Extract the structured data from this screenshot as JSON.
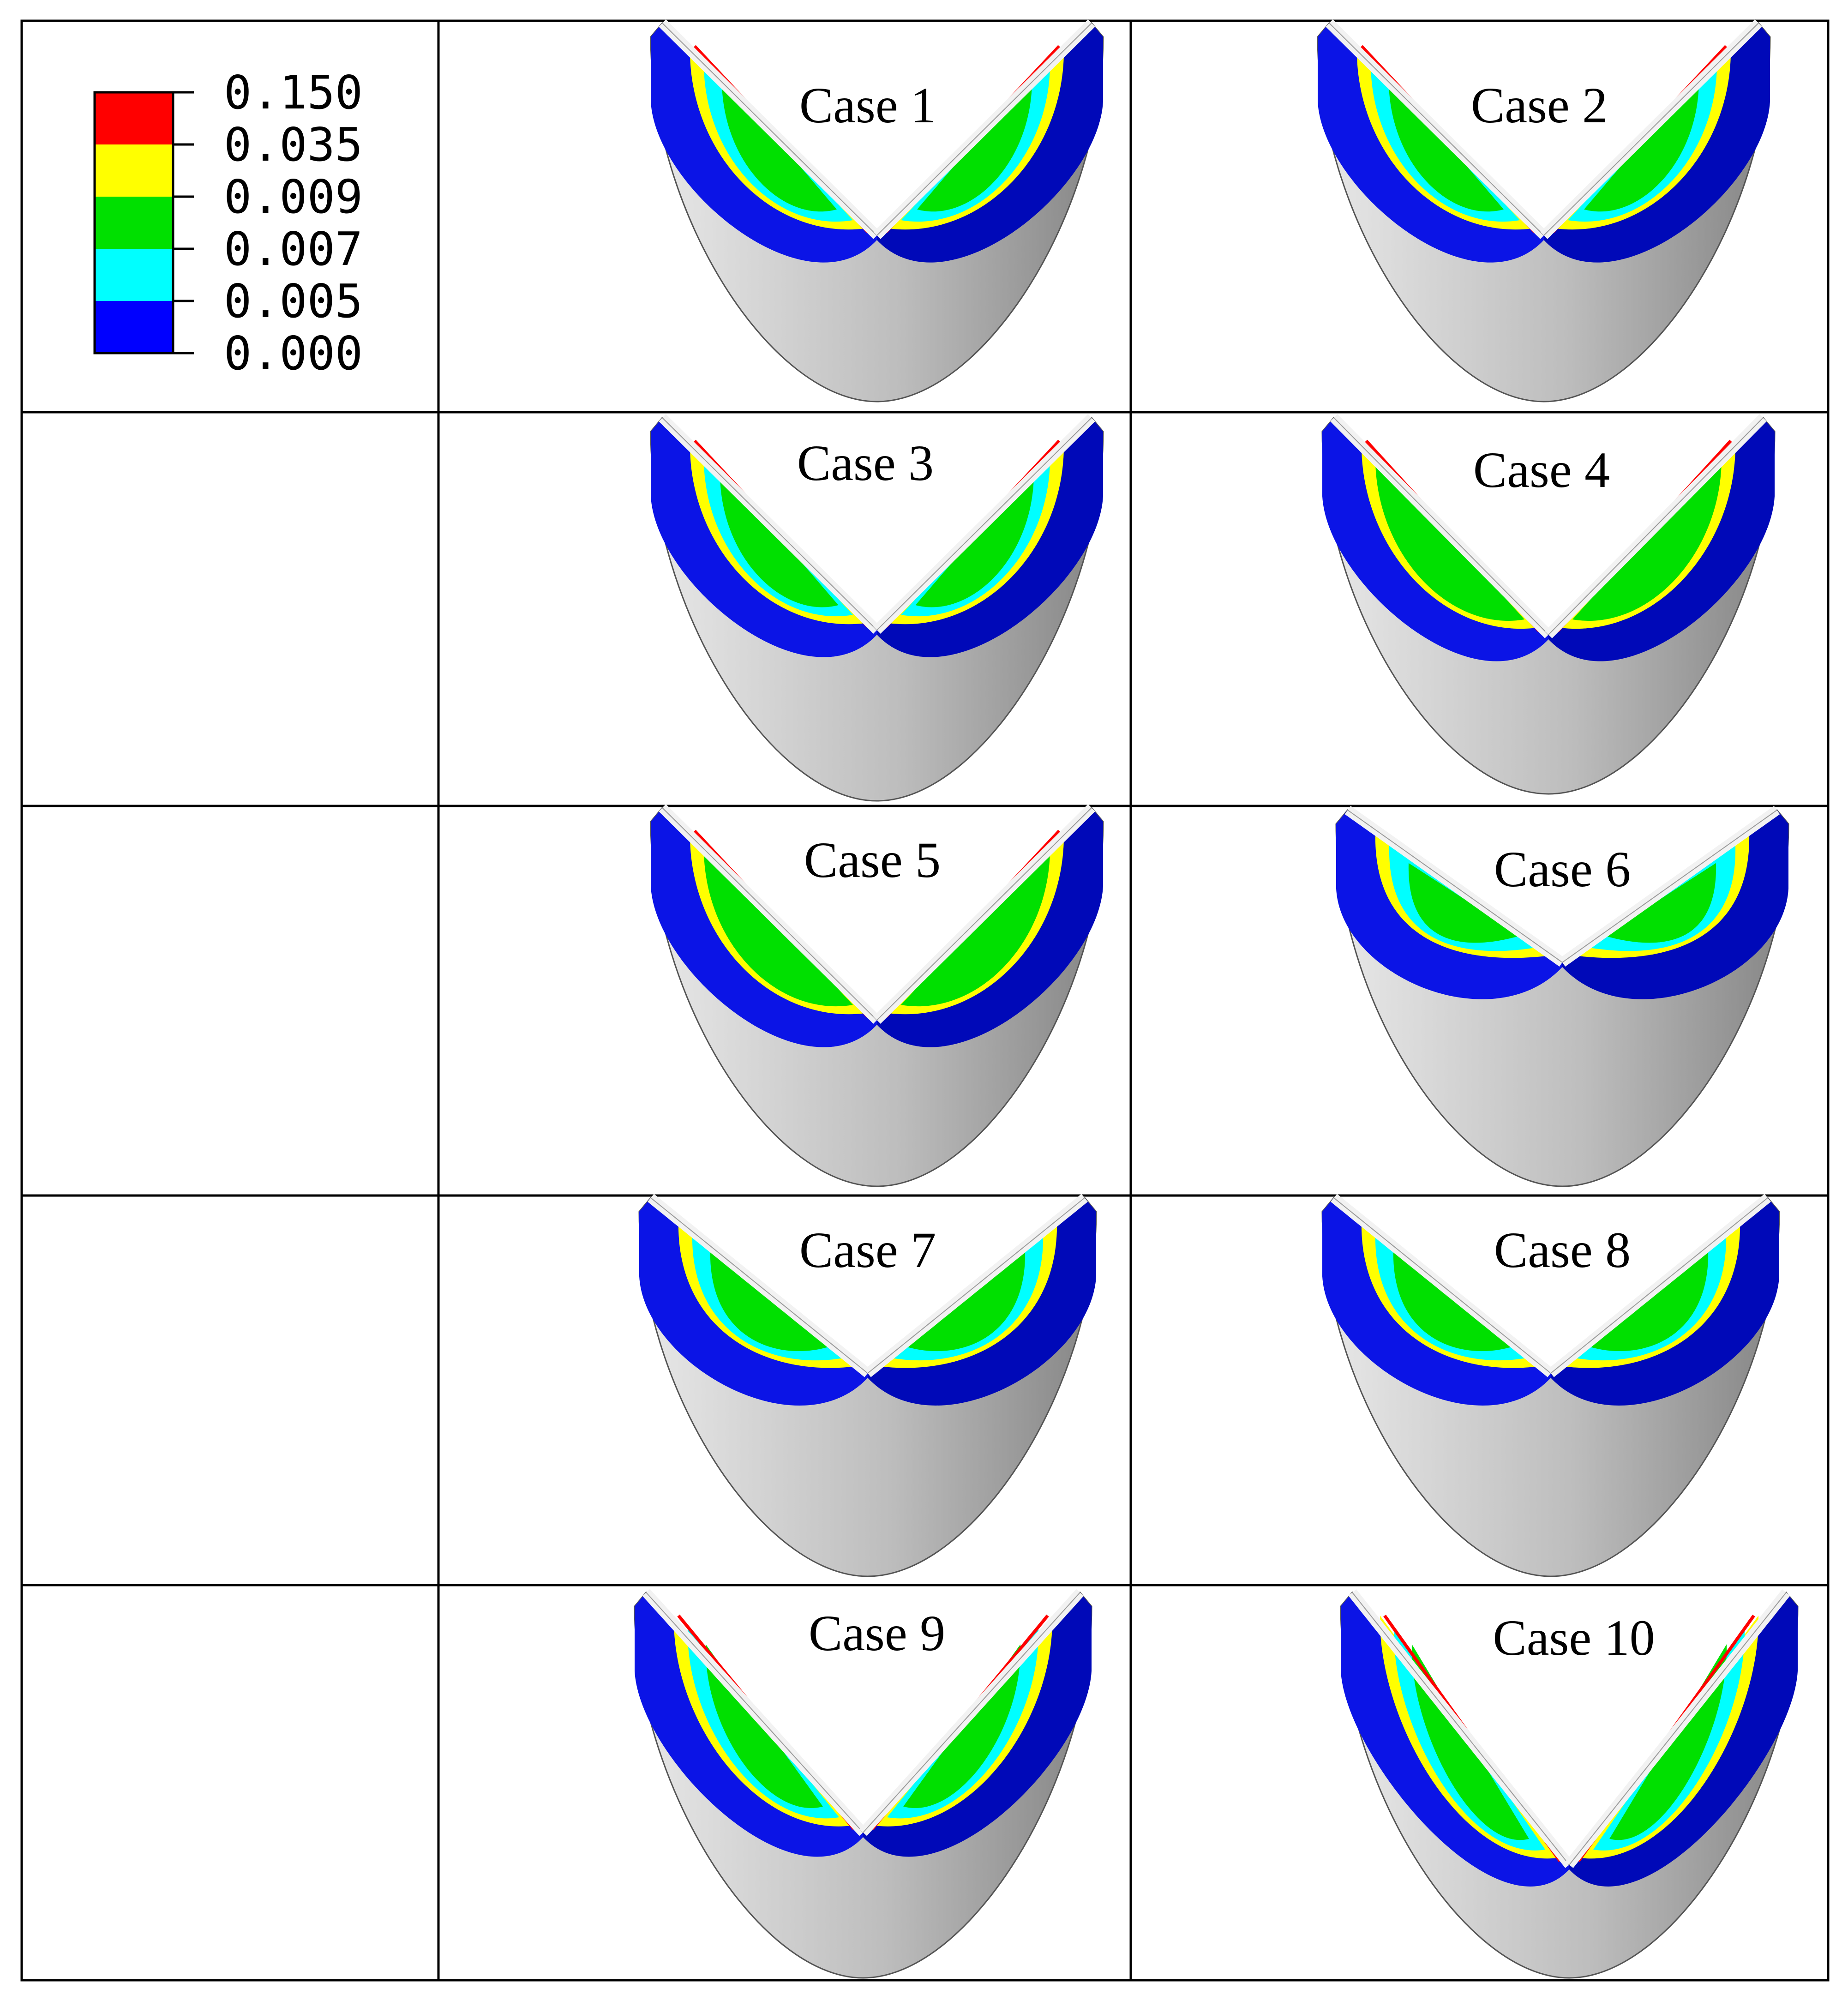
{
  "legend": {
    "colors": [
      "#ff0000",
      "#ffff00",
      "#00e000",
      "#00ffff",
      "#0000ff"
    ],
    "values": [
      "0.150",
      "0.035",
      "0.009",
      "0.007",
      "0.005",
      "0.000"
    ]
  },
  "colors": {
    "band": "#0b14e6",
    "band_dark": "#0009b8",
    "yellow": "#ffff00",
    "cyan": "#00ffff",
    "green": "#00e000",
    "red": "#ff0000",
    "grey_light": "#e6e6e6",
    "grey_dark": "#8a8a8a",
    "rim": "#f2f2f2",
    "grid": "#000000"
  },
  "cases": [
    {
      "label": "Case 1",
      "cyan": 0.3,
      "green": 0.45
    },
    {
      "label": "Case 2",
      "cyan": 0.3,
      "green": 0.45
    },
    {
      "label": "Case 3",
      "cyan": 0.25,
      "green": 0.5
    },
    {
      "label": "Case 4",
      "cyan": 0.05,
      "green": 0.8
    },
    {
      "label": "Case 5",
      "cyan": 0.05,
      "green": 0.75
    },
    {
      "label": "Case 6",
      "cyan": 0.3,
      "green": 0.4
    },
    {
      "label": "Case 7",
      "cyan": 0.3,
      "green": 0.45
    },
    {
      "label": "Case 8",
      "cyan": 0.3,
      "green": 0.45
    },
    {
      "label": "Case 9",
      "cyan": 0.3,
      "green": 0.45
    },
    {
      "label": "Case 10",
      "cyan": 0.3,
      "green": 0.45
    }
  ]
}
